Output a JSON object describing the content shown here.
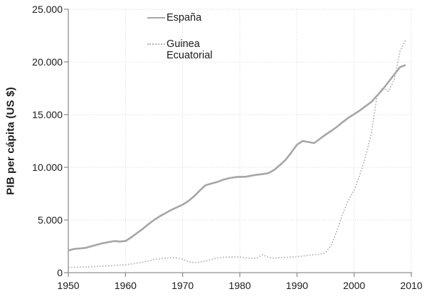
{
  "chart_data": {
    "type": "line",
    "title": "",
    "xlabel": "",
    "ylabel": "PIB per cápita (US $)",
    "xlim": [
      1950,
      2010
    ],
    "ylim": [
      0,
      25000
    ],
    "x_ticks": [
      1950,
      1960,
      1970,
      1980,
      1990,
      2000,
      2010
    ],
    "x_tick_labels": [
      "1950",
      "1960",
      "1970",
      "1980",
      "1990",
      "2000",
      "2010"
    ],
    "y_ticks": [
      0,
      5000,
      10000,
      15000,
      20000,
      25000
    ],
    "y_tick_labels": [
      "0",
      "5.000",
      "10.000",
      "15.000",
      "20.000",
      "25.000"
    ],
    "grid": {
      "show": true,
      "style": "dotted",
      "color": "#d4d4d4"
    },
    "axis_color": "#909090",
    "legend_position": "inside-top, stacked, left of center",
    "series": [
      {
        "name": "España",
        "line_style": "solid",
        "color": "#a6a6a6",
        "x": [
          1950,
          1951,
          1952,
          1953,
          1954,
          1955,
          1956,
          1957,
          1958,
          1959,
          1960,
          1961,
          1962,
          1963,
          1964,
          1965,
          1966,
          1967,
          1968,
          1969,
          1970,
          1971,
          1972,
          1973,
          1974,
          1975,
          1976,
          1977,
          1978,
          1979,
          1980,
          1981,
          1982,
          1983,
          1984,
          1985,
          1986,
          1987,
          1988,
          1989,
          1990,
          1991,
          1992,
          1993,
          1994,
          1995,
          1996,
          1997,
          1998,
          1999,
          2000,
          2001,
          2002,
          2003,
          2004,
          2005,
          2006,
          2007,
          2008,
          2009
        ],
        "values": [
          2100,
          2250,
          2300,
          2350,
          2500,
          2650,
          2800,
          2900,
          3000,
          2950,
          3000,
          3350,
          3750,
          4150,
          4600,
          5000,
          5350,
          5650,
          5950,
          6200,
          6450,
          6800,
          7250,
          7800,
          8300,
          8450,
          8600,
          8800,
          8950,
          9050,
          9100,
          9100,
          9200,
          9300,
          9350,
          9450,
          9750,
          10200,
          10700,
          11400,
          12150,
          12500,
          12400,
          12300,
          12700,
          13100,
          13450,
          13850,
          14300,
          14700,
          15050,
          15400,
          15800,
          16200,
          16800,
          17400,
          18100,
          18800,
          19500,
          19700
        ]
      },
      {
        "name": "Guinea Ecuatorial",
        "line_style": "dotted",
        "color": "#b3b3b3",
        "x": [
          1950,
          1951,
          1952,
          1953,
          1954,
          1955,
          1956,
          1957,
          1958,
          1959,
          1960,
          1961,
          1962,
          1963,
          1964,
          1965,
          1966,
          1967,
          1968,
          1969,
          1970,
          1971,
          1972,
          1973,
          1974,
          1975,
          1976,
          1977,
          1978,
          1979,
          1980,
          1981,
          1982,
          1983,
          1984,
          1985,
          1986,
          1987,
          1988,
          1989,
          1990,
          1991,
          1992,
          1993,
          1994,
          1995,
          1996,
          1997,
          1998,
          1999,
          2000,
          2001,
          2002,
          2003,
          2004,
          2005,
          2006,
          2007,
          2008,
          2009
        ],
        "values": [
          500,
          510,
          520,
          540,
          560,
          580,
          620,
          650,
          680,
          720,
          750,
          820,
          900,
          1000,
          1100,
          1250,
          1320,
          1380,
          1420,
          1400,
          1280,
          1050,
          950,
          1000,
          1100,
          1250,
          1400,
          1450,
          1480,
          1480,
          1490,
          1400,
          1350,
          1400,
          1700,
          1450,
          1370,
          1430,
          1450,
          1480,
          1520,
          1570,
          1650,
          1700,
          1750,
          1900,
          2600,
          4000,
          5600,
          6900,
          7800,
          9300,
          11000,
          13200,
          16800,
          17600,
          17200,
          18300,
          21000,
          22100
        ]
      }
    ]
  }
}
